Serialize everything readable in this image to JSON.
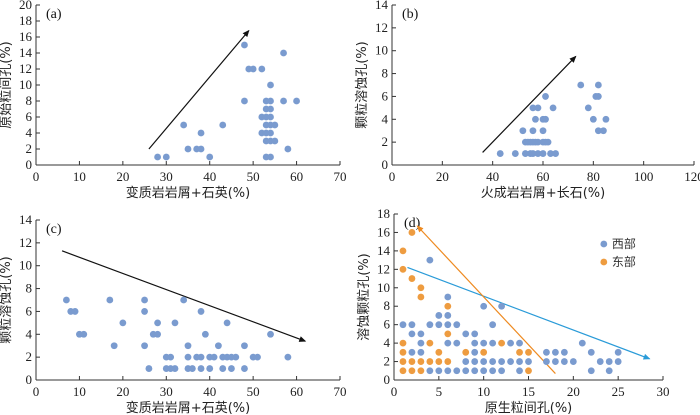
{
  "colors": {
    "west": "#7a9bcf",
    "east": "#ee9c40",
    "axis": "#333333",
    "trend_black": "#111111",
    "trend_blue": "#2a9bd8",
    "trend_orange": "#ee8a20"
  },
  "chart_data": [
    {
      "id": "a",
      "type": "scatter",
      "panel_label": "(a)",
      "xlabel": "变质岩岩屑+石英(%)",
      "ylabel": "原始粒间孔(%)",
      "xlim": [
        0,
        70
      ],
      "ylim": [
        0,
        20
      ],
      "xticks": [
        0,
        10,
        20,
        30,
        40,
        50,
        60,
        70
      ],
      "yticks": [
        0,
        2,
        4,
        6,
        8,
        10,
        12,
        14,
        16,
        18,
        20
      ],
      "series": [
        {
          "name": "samples",
          "color_key": "west",
          "points": [
            [
              28,
              1
            ],
            [
              30,
              1
            ],
            [
              40,
              1
            ],
            [
              53,
              1
            ],
            [
              54,
              1
            ],
            [
              35,
              2
            ],
            [
              37,
              2
            ],
            [
              38,
              2
            ],
            [
              58,
              2
            ],
            [
              53,
              3
            ],
            [
              54,
              3
            ],
            [
              55,
              3
            ],
            [
              38,
              4
            ],
            [
              52,
              4
            ],
            [
              53,
              4
            ],
            [
              54,
              4
            ],
            [
              34,
              5
            ],
            [
              43,
              5
            ],
            [
              53,
              5
            ],
            [
              54,
              5
            ],
            [
              55,
              5
            ],
            [
              52,
              6
            ],
            [
              53,
              6
            ],
            [
              54,
              6
            ],
            [
              53,
              7
            ],
            [
              54,
              7
            ],
            [
              48,
              8
            ],
            [
              53,
              8
            ],
            [
              54,
              8
            ],
            [
              57,
              8
            ],
            [
              60,
              8
            ],
            [
              54,
              10
            ],
            [
              49,
              12
            ],
            [
              50,
              12
            ],
            [
              52,
              12
            ],
            [
              57,
              14
            ],
            [
              48,
              15
            ]
          ]
        }
      ],
      "trend_lines": [
        {
          "color_key": "trend_black",
          "from": [
            26,
            2
          ],
          "to": [
            49,
            16.8
          ]
        }
      ]
    },
    {
      "id": "b",
      "type": "scatter",
      "panel_label": "(b)",
      "xlabel": "火成岩岩屑+长石(%)",
      "ylabel": "颗粒溶蚀孔(%)",
      "xlim": [
        0,
        120
      ],
      "ylim": [
        0,
        14
      ],
      "xticks": [
        0,
        20,
        40,
        60,
        80,
        100,
        120
      ],
      "yticks": [
        0,
        2,
        4,
        6,
        8,
        10,
        12,
        14
      ],
      "series": [
        {
          "name": "samples",
          "color_key": "west",
          "points": [
            [
              43,
              1
            ],
            [
              49,
              1
            ],
            [
              53,
              1
            ],
            [
              55,
              1
            ],
            [
              56,
              1
            ],
            [
              58,
              1
            ],
            [
              60,
              1
            ],
            [
              63,
              1
            ],
            [
              65,
              1
            ],
            [
              53,
              2
            ],
            [
              54,
              2
            ],
            [
              55,
              2
            ],
            [
              56,
              2
            ],
            [
              57,
              2
            ],
            [
              58,
              2
            ],
            [
              60,
              2
            ],
            [
              61,
              2
            ],
            [
              62,
              2
            ],
            [
              52,
              3
            ],
            [
              56,
              3
            ],
            [
              60,
              3
            ],
            [
              82,
              3
            ],
            [
              84,
              3
            ],
            [
              57,
              4
            ],
            [
              60,
              4
            ],
            [
              61,
              4
            ],
            [
              80,
              4
            ],
            [
              85,
              4
            ],
            [
              56,
              5
            ],
            [
              58,
              5
            ],
            [
              64,
              5
            ],
            [
              78,
              5
            ],
            [
              61,
              6
            ],
            [
              81,
              6
            ],
            [
              82,
              6
            ],
            [
              75,
              7
            ],
            [
              82,
              7
            ]
          ]
        }
      ],
      "trend_lines": [
        {
          "color_key": "trend_black",
          "from": [
            36,
            1.1
          ],
          "to": [
            73,
            9.5
          ]
        }
      ]
    },
    {
      "id": "c",
      "type": "scatter",
      "panel_label": "(c)",
      "xlabel": "变质岩岩屑+石英(%)",
      "ylabel": "颗粒溶蚀孔(%)",
      "xlim": [
        0,
        70
      ],
      "ylim": [
        0,
        14
      ],
      "xticks": [
        0,
        10,
        20,
        30,
        40,
        50,
        60,
        70
      ],
      "yticks": [
        0,
        2,
        4,
        6,
        8,
        10,
        12,
        14
      ],
      "series": [
        {
          "name": "samples",
          "color_key": "west",
          "points": [
            [
              26,
              1
            ],
            [
              30,
              1
            ],
            [
              31,
              1
            ],
            [
              32,
              1
            ],
            [
              35,
              1
            ],
            [
              36,
              1
            ],
            [
              38,
              1
            ],
            [
              40,
              1
            ],
            [
              43,
              1
            ],
            [
              45,
              1
            ],
            [
              48,
              1
            ],
            [
              30,
              2
            ],
            [
              31,
              2
            ],
            [
              35,
              2
            ],
            [
              37,
              2
            ],
            [
              38,
              2
            ],
            [
              40,
              2
            ],
            [
              41,
              2
            ],
            [
              43,
              2
            ],
            [
              44,
              2
            ],
            [
              45,
              2
            ],
            [
              46,
              2
            ],
            [
              50,
              2
            ],
            [
              51,
              2
            ],
            [
              58,
              2
            ],
            [
              18,
              3
            ],
            [
              25,
              3
            ],
            [
              35,
              3
            ],
            [
              42,
              3
            ],
            [
              48,
              3
            ],
            [
              10,
              4
            ],
            [
              11,
              4
            ],
            [
              27,
              4
            ],
            [
              28,
              4
            ],
            [
              39,
              4
            ],
            [
              54,
              4
            ],
            [
              20,
              5
            ],
            [
              28,
              5
            ],
            [
              32,
              5
            ],
            [
              44,
              5
            ],
            [
              8,
              6
            ],
            [
              9,
              6
            ],
            [
              25,
              6
            ],
            [
              38,
              6
            ],
            [
              7,
              7
            ],
            [
              17,
              7
            ],
            [
              25,
              7
            ],
            [
              34,
              7
            ]
          ]
        }
      ],
      "trend_lines": [
        {
          "color_key": "trend_black",
          "from": [
            6,
            11.3
          ],
          "to": [
            62,
            3.4
          ]
        }
      ]
    },
    {
      "id": "d",
      "type": "scatter",
      "panel_label": "(d)",
      "xlabel": "原生粒间孔(%)",
      "ylabel": "溶蚀颗粒孔(%)",
      "xlim": [
        0,
        30
      ],
      "ylim": [
        0,
        18
      ],
      "xticks": [
        0,
        5,
        10,
        15,
        20,
        25,
        30
      ],
      "yticks": [
        0,
        2,
        4,
        6,
        8,
        10,
        12,
        14,
        16,
        18
      ],
      "legend": {
        "position": "top-right",
        "entries": [
          {
            "label": "西部",
            "color_key": "west"
          },
          {
            "label": "东部",
            "color_key": "east"
          }
        ]
      },
      "series": [
        {
          "name": "西部",
          "color_key": "west",
          "points": [
            [
              4,
              1
            ],
            [
              5,
              1
            ],
            [
              6,
              1
            ],
            [
              7,
              1
            ],
            [
              8,
              1
            ],
            [
              9,
              1
            ],
            [
              10,
              1
            ],
            [
              11,
              1
            ],
            [
              12,
              1
            ],
            [
              14,
              1
            ],
            [
              22,
              1
            ],
            [
              24,
              1
            ],
            [
              8,
              2
            ],
            [
              9,
              2
            ],
            [
              10,
              2
            ],
            [
              11,
              2
            ],
            [
              12,
              2
            ],
            [
              13,
              2
            ],
            [
              14,
              2
            ],
            [
              15,
              2
            ],
            [
              17,
              2
            ],
            [
              18,
              2
            ],
            [
              19,
              2
            ],
            [
              20,
              2
            ],
            [
              23,
              2
            ],
            [
              24,
              2
            ],
            [
              25,
              2
            ],
            [
              2,
              3
            ],
            [
              3,
              3
            ],
            [
              9,
              3
            ],
            [
              17,
              3
            ],
            [
              18,
              3
            ],
            [
              19,
              3
            ],
            [
              22,
              3
            ],
            [
              25,
              3
            ],
            [
              3,
              4
            ],
            [
              6,
              4
            ],
            [
              7,
              4
            ],
            [
              9,
              4
            ],
            [
              10,
              4
            ],
            [
              11,
              4
            ],
            [
              13,
              4
            ],
            [
              14,
              4
            ],
            [
              21,
              4
            ],
            [
              2,
              5
            ],
            [
              3,
              5
            ],
            [
              8,
              5
            ],
            [
              9,
              5
            ],
            [
              1,
              6
            ],
            [
              2,
              6
            ],
            [
              4,
              6
            ],
            [
              5,
              6
            ],
            [
              6,
              6
            ],
            [
              7,
              6
            ],
            [
              11,
              6
            ],
            [
              5,
              7
            ],
            [
              6,
              7
            ],
            [
              10,
              8
            ],
            [
              12,
              8
            ],
            [
              6,
              9
            ],
            [
              4,
              13
            ]
          ]
        },
        {
          "name": "东部",
          "color_key": "east",
          "points": [
            [
              1,
              1
            ],
            [
              2,
              1
            ],
            [
              3,
              1
            ],
            [
              15,
              1
            ],
            [
              1,
              2
            ],
            [
              2,
              2
            ],
            [
              3,
              2
            ],
            [
              4,
              2
            ],
            [
              5,
              2
            ],
            [
              6,
              2
            ],
            [
              1,
              3
            ],
            [
              5,
              3
            ],
            [
              8,
              3
            ],
            [
              10,
              3
            ],
            [
              14,
              3
            ],
            [
              15,
              3
            ],
            [
              1,
              4
            ],
            [
              4,
              4
            ],
            [
              12,
              4
            ],
            [
              6,
              5
            ],
            [
              6,
              8
            ],
            [
              3,
              9
            ],
            [
              3,
              10
            ],
            [
              2,
              11
            ],
            [
              1,
              12
            ],
            [
              1,
              14
            ],
            [
              2,
              16
            ]
          ]
        }
      ],
      "trend_lines": [
        {
          "color_key": "trend_blue",
          "from": [
            1.5,
            12.2
          ],
          "to": [
            28.5,
            2.3
          ]
        },
        {
          "color_key": "trend_orange",
          "from": [
            18,
            0.7
          ],
          "to": [
            2.6,
            16.7
          ]
        }
      ]
    }
  ]
}
